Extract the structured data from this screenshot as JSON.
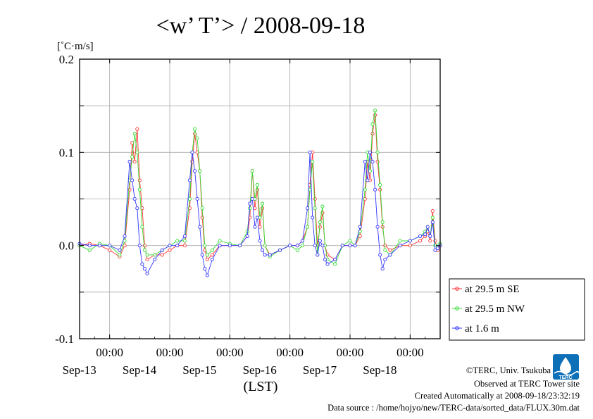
{
  "title": "<w’ T’> / 2008-09-18",
  "colors": {
    "se": "#ff3333",
    "nw": "#33dd33",
    "m16": "#3333ff",
    "grid": "#aaaaaa",
    "logo": "#0d6fb8"
  },
  "chart_data": {
    "type": "line",
    "unit_label": "[˚C·m/s]",
    "xlabel": "(LST)",
    "ylabel": "",
    "x_start": "2008-09-12T12:00",
    "x_end": "2008-09-18T12:00",
    "ylim": [
      -0.1,
      0.2
    ],
    "yticks": [
      -0.1,
      0.0,
      0.1,
      0.2
    ],
    "ytick_labels": [
      "-0.1",
      "0.0",
      "0.1",
      "0.2"
    ],
    "xticks": [
      {
        "time": "2008-09-13 00:00",
        "time_label": "00:00",
        "date_label": "Sep-13"
      },
      {
        "time": "2008-09-14 00:00",
        "time_label": "00:00",
        "date_label": "Sep-14"
      },
      {
        "time": "2008-09-15 00:00",
        "time_label": "00:00",
        "date_label": "Sep-15"
      },
      {
        "time": "2008-09-16 00:00",
        "time_label": "00:00",
        "date_label": "Sep-16"
      },
      {
        "time": "2008-09-17 00:00",
        "time_label": "00:00",
        "date_label": "Sep-17"
      },
      {
        "time": "2008-09-18 00:00",
        "time_label": "00:00",
        "date_label": "Sep-18"
      }
    ],
    "grid": true,
    "legend_position": "right",
    "series": [
      {
        "name": "at 29.5 m SE",
        "color": "#ff3333",
        "points": [
          [
            "2008-09-12T12:00",
            0.0
          ],
          [
            "2008-09-12T16:00",
            0.002
          ],
          [
            "2008-09-12T20:00",
            0.0
          ],
          [
            "2008-09-13T00:00",
            -0.005
          ],
          [
            "2008-09-13T04:00",
            -0.012
          ],
          [
            "2008-09-13T06:00",
            0.0
          ],
          [
            "2008-09-13T08:00",
            0.06
          ],
          [
            "2008-09-13T09:00",
            0.11
          ],
          [
            "2008-09-13T10:00",
            0.09
          ],
          [
            "2008-09-13T11:00",
            0.125
          ],
          [
            "2008-09-13T12:00",
            0.07
          ],
          [
            "2008-09-13T13:00",
            0.04
          ],
          [
            "2008-09-13T14:00",
            0.0
          ],
          [
            "2008-09-13T15:00",
            -0.015
          ],
          [
            "2008-09-13T18:00",
            -0.01
          ],
          [
            "2008-09-13T21:00",
            -0.01
          ],
          [
            "2008-09-14T00:00",
            -0.005
          ],
          [
            "2008-09-14T03:00",
            0.0
          ],
          [
            "2008-09-14T06:00",
            0.0
          ],
          [
            "2008-09-14T08:00",
            0.04
          ],
          [
            "2008-09-14T09:00",
            0.09
          ],
          [
            "2008-09-14T10:00",
            0.12
          ],
          [
            "2008-09-14T11:00",
            0.1
          ],
          [
            "2008-09-14T12:00",
            0.08
          ],
          [
            "2008-09-14T13:00",
            0.03
          ],
          [
            "2008-09-14T14:00",
            -0.005
          ],
          [
            "2008-09-14T15:00",
            -0.015
          ],
          [
            "2008-09-14T17:00",
            -0.01
          ],
          [
            "2008-09-14T20:00",
            0.0
          ],
          [
            "2008-09-15T00:00",
            0.0
          ],
          [
            "2008-09-15T04:00",
            0.0
          ],
          [
            "2008-09-15T07:00",
            0.01
          ],
          [
            "2008-09-15T08:00",
            0.03
          ],
          [
            "2008-09-15T09:00",
            0.08
          ],
          [
            "2008-09-15T10:00",
            0.04
          ],
          [
            "2008-09-15T11:00",
            0.06
          ],
          [
            "2008-09-15T12:00",
            0.02
          ],
          [
            "2008-09-15T13:00",
            0.04
          ],
          [
            "2008-09-15T14:00",
            0.0
          ],
          [
            "2008-09-15T16:00",
            -0.01
          ],
          [
            "2008-09-15T20:00",
            -0.005
          ],
          [
            "2008-09-16T00:00",
            0.0
          ],
          [
            "2008-09-16T03:00",
            0.0
          ],
          [
            "2008-09-16T05:00",
            0.005
          ],
          [
            "2008-09-16T07:00",
            0.02
          ],
          [
            "2008-09-16T08:00",
            0.065
          ],
          [
            "2008-09-16T09:00",
            0.1
          ],
          [
            "2008-09-16T10:00",
            0.05
          ],
          [
            "2008-09-16T11:00",
            0.0
          ],
          [
            "2008-09-16T12:00",
            0.02
          ],
          [
            "2008-09-16T13:00",
            0.035
          ],
          [
            "2008-09-16T14:00",
            0.0
          ],
          [
            "2008-09-16T15:00",
            -0.01
          ],
          [
            "2008-09-16T18:00",
            -0.015
          ],
          [
            "2008-09-16T21:00",
            0.0
          ],
          [
            "2008-09-17T00:00",
            0.0
          ],
          [
            "2008-09-17T02:00",
            0.0
          ],
          [
            "2008-09-17T04:00",
            0.01
          ],
          [
            "2008-09-17T06:00",
            0.05
          ],
          [
            "2008-09-17T07:00",
            0.09
          ],
          [
            "2008-09-17T08:00",
            0.07
          ],
          [
            "2008-09-17T09:00",
            0.12
          ],
          [
            "2008-09-17T10:00",
            0.14
          ],
          [
            "2008-09-17T11:00",
            0.09
          ],
          [
            "2008-09-17T12:00",
            0.06
          ],
          [
            "2008-09-17T13:00",
            0.02
          ],
          [
            "2008-09-17T14:00",
            0.0
          ],
          [
            "2008-09-17T16:00",
            -0.005
          ],
          [
            "2008-09-17T20:00",
            0.0
          ],
          [
            "2008-09-18T00:00",
            0.0
          ],
          [
            "2008-09-18T04:00",
            0.005
          ],
          [
            "2008-09-18T06:00",
            0.01
          ],
          [
            "2008-09-18T07:00",
            0.015
          ],
          [
            "2008-09-18T08:00",
            0.005
          ],
          [
            "2008-09-18T09:00",
            0.037
          ],
          [
            "2008-09-18T10:00",
            0.005
          ],
          [
            "2008-09-18T11:00",
            -0.005
          ],
          [
            "2008-09-18T12:00",
            0.0
          ]
        ]
      },
      {
        "name": "at 29.5 m NW",
        "color": "#33dd33",
        "points": [
          [
            "2008-09-12T12:00",
            0.0
          ],
          [
            "2008-09-12T16:00",
            -0.005
          ],
          [
            "2008-09-12T20:00",
            0.002
          ],
          [
            "2008-09-13T00:00",
            0.0
          ],
          [
            "2008-09-13T04:00",
            -0.01
          ],
          [
            "2008-09-13T06:00",
            0.005
          ],
          [
            "2008-09-13T08:00",
            0.07
          ],
          [
            "2008-09-13T09:00",
            0.095
          ],
          [
            "2008-09-13T10:00",
            0.12
          ],
          [
            "2008-09-13T11:00",
            0.1
          ],
          [
            "2008-09-13T12:00",
            0.06
          ],
          [
            "2008-09-13T13:00",
            0.02
          ],
          [
            "2008-09-13T14:00",
            -0.005
          ],
          [
            "2008-09-13T15:00",
            -0.01
          ],
          [
            "2008-09-13T18:00",
            -0.01
          ],
          [
            "2008-09-13T21:00",
            -0.005
          ],
          [
            "2008-09-14T00:00",
            0.0
          ],
          [
            "2008-09-14T03:00",
            0.005
          ],
          [
            "2008-09-14T06:00",
            0.005
          ],
          [
            "2008-09-14T08:00",
            0.05
          ],
          [
            "2008-09-14T09:00",
            0.1
          ],
          [
            "2008-09-14T10:00",
            0.125
          ],
          [
            "2008-09-14T11:00",
            0.115
          ],
          [
            "2008-09-14T12:00",
            0.08
          ],
          [
            "2008-09-14T13:00",
            0.04
          ],
          [
            "2008-09-14T14:00",
            0.0
          ],
          [
            "2008-09-14T15:00",
            -0.01
          ],
          [
            "2008-09-14T17:00",
            -0.005
          ],
          [
            "2008-09-14T20:00",
            0.005
          ],
          [
            "2008-09-15T00:00",
            0.002
          ],
          [
            "2008-09-15T04:00",
            0.0
          ],
          [
            "2008-09-15T07:00",
            0.015
          ],
          [
            "2008-09-15T08:00",
            0.04
          ],
          [
            "2008-09-15T09:00",
            0.08
          ],
          [
            "2008-09-15T10:00",
            0.05
          ],
          [
            "2008-09-15T11:00",
            0.065
          ],
          [
            "2008-09-15T12:00",
            0.03
          ],
          [
            "2008-09-15T13:00",
            0.045
          ],
          [
            "2008-09-15T14:00",
            0.0
          ],
          [
            "2008-09-15T16:00",
            -0.012
          ],
          [
            "2008-09-15T20:00",
            -0.005
          ],
          [
            "2008-09-16T00:00",
            0.0
          ],
          [
            "2008-09-16T03:00",
            -0.005
          ],
          [
            "2008-09-16T05:00",
            0.0
          ],
          [
            "2008-09-16T07:00",
            0.02
          ],
          [
            "2008-09-16T08:00",
            0.06
          ],
          [
            "2008-09-16T09:00",
            0.09
          ],
          [
            "2008-09-16T10:00",
            0.04
          ],
          [
            "2008-09-16T11:00",
            -0.01
          ],
          [
            "2008-09-16T12:00",
            0.025
          ],
          [
            "2008-09-16T13:00",
            0.042
          ],
          [
            "2008-09-16T14:00",
            0.0
          ],
          [
            "2008-09-16T15:00",
            -0.015
          ],
          [
            "2008-09-16T18:00",
            -0.02
          ],
          [
            "2008-09-16T21:00",
            0.0
          ],
          [
            "2008-09-17T00:00",
            0.005
          ],
          [
            "2008-09-17T02:00",
            0.0
          ],
          [
            "2008-09-17T04:00",
            0.015
          ],
          [
            "2008-09-17T06:00",
            0.06
          ],
          [
            "2008-09-17T07:00",
            0.1
          ],
          [
            "2008-09-17T08:00",
            0.08
          ],
          [
            "2008-09-17T09:00",
            0.13
          ],
          [
            "2008-09-17T10:00",
            0.145
          ],
          [
            "2008-09-17T11:00",
            0.1
          ],
          [
            "2008-09-17T12:00",
            0.065
          ],
          [
            "2008-09-17T13:00",
            0.025
          ],
          [
            "2008-09-17T14:00",
            -0.005
          ],
          [
            "2008-09-17T16:00",
            -0.01
          ],
          [
            "2008-09-17T20:00",
            0.005
          ],
          [
            "2008-09-18T00:00",
            0.005
          ],
          [
            "2008-09-18T04:00",
            0.01
          ],
          [
            "2008-09-18T06:00",
            0.015
          ],
          [
            "2008-09-18T07:00",
            0.02
          ],
          [
            "2008-09-18T08:00",
            0.01
          ],
          [
            "2008-09-18T09:00",
            0.03
          ],
          [
            "2008-09-18T10:00",
            0.0
          ],
          [
            "2008-09-18T11:00",
            0.0
          ],
          [
            "2008-09-18T12:00",
            0.002
          ]
        ]
      },
      {
        "name": "at 1.6 m",
        "color": "#3333ff",
        "points": [
          [
            "2008-09-12T12:00",
            0.002
          ],
          [
            "2008-09-12T16:00",
            0.0
          ],
          [
            "2008-09-12T20:00",
            0.0
          ],
          [
            "2008-09-13T00:00",
            0.0
          ],
          [
            "2008-09-13T04:00",
            -0.005
          ],
          [
            "2008-09-13T06:00",
            0.01
          ],
          [
            "2008-09-13T08:00",
            0.09
          ],
          [
            "2008-09-13T09:00",
            0.07
          ],
          [
            "2008-09-13T10:00",
            0.05
          ],
          [
            "2008-09-13T11:00",
            0.04
          ],
          [
            "2008-09-13T12:00",
            0.0
          ],
          [
            "2008-09-13T13:00",
            -0.02
          ],
          [
            "2008-09-13T14:00",
            -0.025
          ],
          [
            "2008-09-13T15:00",
            -0.03
          ],
          [
            "2008-09-13T18:00",
            -0.015
          ],
          [
            "2008-09-13T21:00",
            -0.005
          ],
          [
            "2008-09-14T00:00",
            0.0
          ],
          [
            "2008-09-14T03:00",
            0.0
          ],
          [
            "2008-09-14T06:00",
            0.01
          ],
          [
            "2008-09-14T08:00",
            0.07
          ],
          [
            "2008-09-14T09:00",
            0.1
          ],
          [
            "2008-09-14T10:00",
            0.08
          ],
          [
            "2008-09-14T11:00",
            0.05
          ],
          [
            "2008-09-14T12:00",
            0.02
          ],
          [
            "2008-09-14T13:00",
            -0.01
          ],
          [
            "2008-09-14T14:00",
            -0.025
          ],
          [
            "2008-09-14T15:00",
            -0.032
          ],
          [
            "2008-09-14T17:00",
            -0.015
          ],
          [
            "2008-09-14T20:00",
            0.0
          ],
          [
            "2008-09-15T00:00",
            0.0
          ],
          [
            "2008-09-15T04:00",
            0.0
          ],
          [
            "2008-09-15T07:00",
            0.01
          ],
          [
            "2008-09-15T08:00",
            0.045
          ],
          [
            "2008-09-15T09:00",
            0.05
          ],
          [
            "2008-09-15T10:00",
            0.02
          ],
          [
            "2008-09-15T11:00",
            0.03
          ],
          [
            "2008-09-15T12:00",
            0.005
          ],
          [
            "2008-09-15T13:00",
            -0.005
          ],
          [
            "2008-09-15T14:00",
            -0.01
          ],
          [
            "2008-09-15T16:00",
            -0.01
          ],
          [
            "2008-09-15T20:00",
            -0.005
          ],
          [
            "2008-09-16T00:00",
            0.0
          ],
          [
            "2008-09-16T03:00",
            0.0
          ],
          [
            "2008-09-16T05:00",
            0.005
          ],
          [
            "2008-09-16T07:00",
            0.04
          ],
          [
            "2008-09-16T08:00",
            0.1
          ],
          [
            "2008-09-16T09:00",
            0.03
          ],
          [
            "2008-09-16T10:00",
            0.0
          ],
          [
            "2008-09-16T11:00",
            -0.01
          ],
          [
            "2008-09-16T12:00",
            0.005
          ],
          [
            "2008-09-16T13:00",
            0.0
          ],
          [
            "2008-09-16T14:00",
            -0.015
          ],
          [
            "2008-09-16T15:00",
            -0.02
          ],
          [
            "2008-09-16T18:00",
            -0.015
          ],
          [
            "2008-09-16T21:00",
            0.0
          ],
          [
            "2008-09-17T00:00",
            0.0
          ],
          [
            "2008-09-17T02:00",
            0.0
          ],
          [
            "2008-09-17T04:00",
            0.02
          ],
          [
            "2008-09-17T06:00",
            0.09
          ],
          [
            "2008-09-17T07:00",
            0.07
          ],
          [
            "2008-09-17T08:00",
            0.1
          ],
          [
            "2008-09-17T09:00",
            0.09
          ],
          [
            "2008-09-17T10:00",
            0.06
          ],
          [
            "2008-09-17T11:00",
            0.02
          ],
          [
            "2008-09-17T12:00",
            -0.01
          ],
          [
            "2008-09-17T13:00",
            -0.025
          ],
          [
            "2008-09-17T14:00",
            -0.015
          ],
          [
            "2008-09-17T16:00",
            -0.01
          ],
          [
            "2008-09-17T20:00",
            0.0
          ],
          [
            "2008-09-18T00:00",
            0.005
          ],
          [
            "2008-09-18T04:00",
            0.01
          ],
          [
            "2008-09-18T06:00",
            0.012
          ],
          [
            "2008-09-18T07:00",
            0.02
          ],
          [
            "2008-09-18T08:00",
            0.01
          ],
          [
            "2008-09-18T09:00",
            0.025
          ],
          [
            "2008-09-18T10:00",
            -0.005
          ],
          [
            "2008-09-18T11:00",
            -0.003
          ],
          [
            "2008-09-18T12:00",
            0.0
          ]
        ]
      }
    ]
  },
  "credits": {
    "copyright": "©TERC, Univ. Tsukuba",
    "observed": "Observed at TERC Tower site",
    "created": "Created Automatically at 2008-09-18/23:32:19",
    "source": "Data source : /home/hojyo/new/TERC-data/sorted_data/FLUX.30m.dat",
    "logo_text": "TERC"
  }
}
